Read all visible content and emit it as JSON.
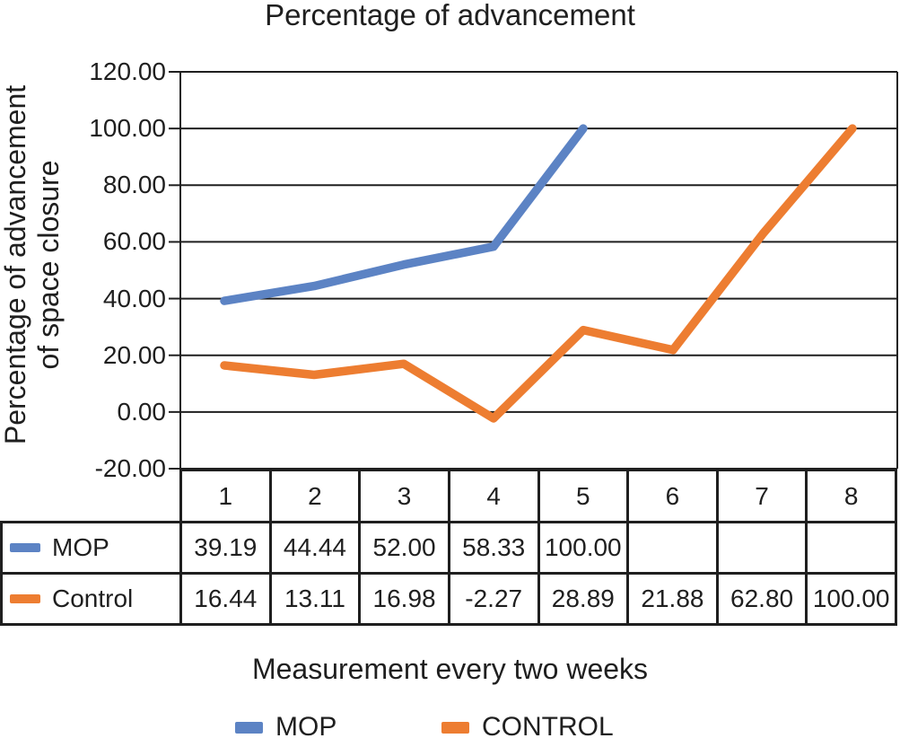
{
  "figure": {
    "title": "Percentage of advancement",
    "y_axis_label_line1": "Percentage of advancement",
    "y_axis_label_line2": "of space closure",
    "x_axis_label": "Measurement every two weeks"
  },
  "colors": {
    "axis": "#1f1f1f",
    "mop": "#5C83C4",
    "control": "#ED7D31"
  },
  "chart_data": {
    "type": "line",
    "title": "Percentage of advancement",
    "xlabel": "Measurement every two weeks",
    "ylabel": "Percentage of advancement of space closure",
    "categories": [
      "1",
      "2",
      "3",
      "4",
      "5",
      "6",
      "7",
      "8"
    ],
    "series": [
      {
        "name": "MOP",
        "color": "#5C83C4",
        "values": [
          39.19,
          44.44,
          52.0,
          58.33,
          100.0,
          null,
          null,
          null
        ]
      },
      {
        "name": "Control",
        "color": "#ED7D31",
        "values": [
          16.44,
          13.11,
          16.98,
          -2.27,
          28.89,
          21.88,
          62.8,
          100.0
        ]
      }
    ],
    "ylim": [
      -20,
      120
    ],
    "yticks": [
      120,
      100,
      80,
      60,
      40,
      20,
      0,
      -20
    ],
    "ytick_labels": [
      "120.00",
      "100.00",
      "80.00",
      "60.00",
      "40.00",
      "20.00",
      "0.00",
      "-20.00"
    ],
    "grid": true,
    "legend_position": "bottom"
  },
  "table": {
    "columns": [
      "1",
      "2",
      "3",
      "4",
      "5",
      "6",
      "7",
      "8"
    ],
    "rows": [
      {
        "label": "MOP",
        "display": [
          "39.19",
          "44.44",
          "52.00",
          "58.33",
          "100.00",
          "",
          "",
          ""
        ]
      },
      {
        "label": "Control",
        "display": [
          "16.44",
          "13.11",
          "16.98",
          "-2.27",
          "28.89",
          "21.88",
          "62.80",
          "100.00"
        ]
      }
    ]
  },
  "legend": {
    "items": [
      {
        "label": "MOP"
      },
      {
        "label": "CONTROL"
      }
    ]
  }
}
